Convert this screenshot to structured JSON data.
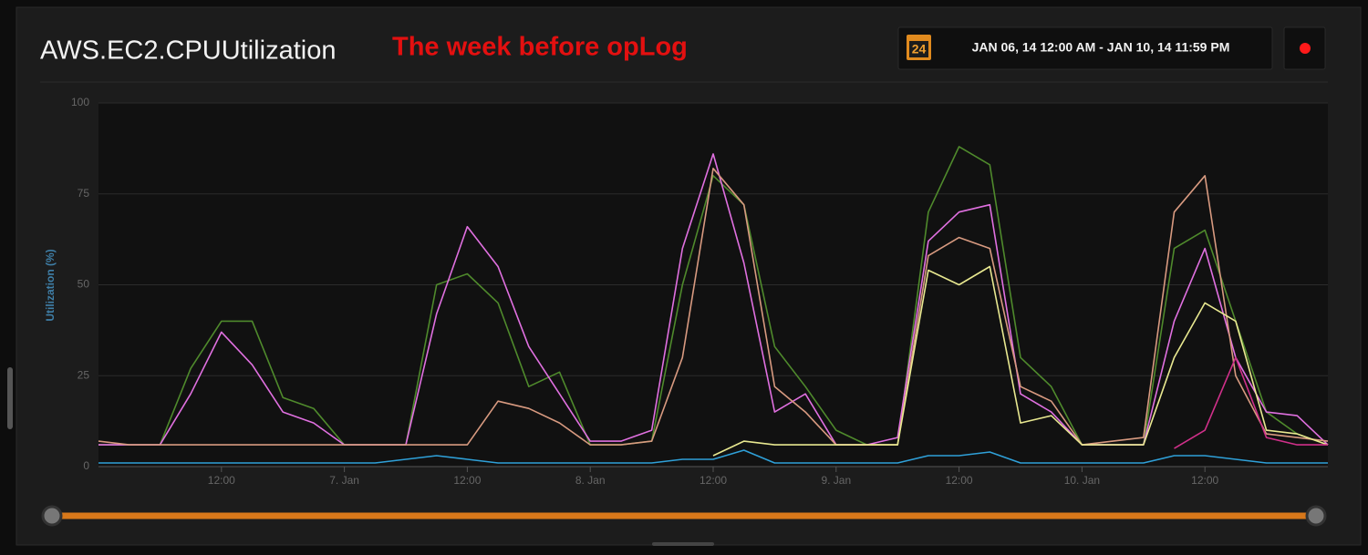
{
  "chart_data": {
    "type": "line",
    "title": "AWS.EC2.CPUUtilization",
    "annotation": "The week before opLog",
    "date_range": "JAN 06, 14 12:00 AM - JAN 10, 14 11:59 PM",
    "calendar_icon_label": "24",
    "ylabel": "Utilization (%)",
    "x": [
      0,
      3,
      6,
      9,
      12,
      15,
      18,
      21,
      24,
      27,
      30,
      33,
      36,
      39,
      42,
      45,
      48,
      51,
      54,
      57,
      60,
      63,
      66,
      69,
      72,
      75,
      78,
      81,
      84,
      87,
      90,
      93,
      96,
      99,
      102,
      105,
      108,
      111,
      114,
      117,
      120
    ],
    "xlim": [
      0,
      120
    ],
    "xticks": [
      {
        "value": 12,
        "label": "12:00"
      },
      {
        "value": 24,
        "label": "7. Jan"
      },
      {
        "value": 36,
        "label": "12:00"
      },
      {
        "value": 48,
        "label": "8. Jan"
      },
      {
        "value": 60,
        "label": "12:00"
      },
      {
        "value": 72,
        "label": "9. Jan"
      },
      {
        "value": 84,
        "label": "12:00"
      },
      {
        "value": 96,
        "label": "10. Jan"
      },
      {
        "value": 108,
        "label": "12:00"
      }
    ],
    "ylim": [
      0,
      100
    ],
    "yticks": [
      0,
      25,
      50,
      75,
      100
    ],
    "grid": true,
    "series": [
      {
        "color": "#4f8a2c",
        "values": [
          6,
          6,
          6,
          27,
          40,
          40,
          19,
          16,
          6,
          6,
          6,
          50,
          53,
          45,
          22,
          26,
          6,
          6,
          7,
          50,
          80,
          72,
          33,
          22,
          10,
          6,
          6,
          70,
          88,
          83,
          30,
          22,
          6,
          6,
          6,
          60,
          65,
          40,
          15,
          9,
          6
        ]
      },
      {
        "color": "#e070e0",
        "values": [
          6,
          6,
          6,
          20,
          37,
          28,
          15,
          12,
          6,
          6,
          6,
          42,
          66,
          55,
          33,
          20,
          7,
          7,
          10,
          60,
          86,
          56,
          15,
          20,
          6,
          6,
          8,
          62,
          70,
          72,
          20,
          15,
          6,
          6,
          6,
          40,
          60,
          30,
          15,
          14,
          6
        ]
      },
      {
        "color": "#d89a80",
        "values": [
          7,
          6,
          6,
          6,
          6,
          6,
          6,
          6,
          6,
          6,
          6,
          6,
          6,
          18,
          16,
          12,
          6,
          6,
          7,
          30,
          82,
          72,
          22,
          15,
          6,
          6,
          6,
          58,
          63,
          60,
          22,
          18,
          6,
          7,
          8,
          70,
          80,
          25,
          9,
          8,
          7
        ]
      },
      {
        "color": "#e8e890",
        "values": [
          null,
          null,
          null,
          null,
          null,
          null,
          null,
          null,
          null,
          null,
          null,
          null,
          null,
          null,
          null,
          null,
          null,
          null,
          null,
          null,
          3,
          7,
          6,
          6,
          6,
          6,
          6,
          54,
          50,
          55,
          12,
          14,
          6,
          6,
          6,
          30,
          45,
          40,
          10,
          9,
          6
        ]
      },
      {
        "color": "#2fa0d8",
        "values": [
          1,
          1,
          1,
          1,
          1,
          1,
          1,
          1,
          1,
          1,
          2,
          3,
          2,
          1,
          1,
          1,
          1,
          1,
          1,
          2,
          2,
          4.5,
          1,
          1,
          1,
          1,
          1,
          3,
          3,
          4,
          1,
          1,
          1,
          1,
          1,
          3,
          3,
          2,
          1,
          1,
          1
        ]
      },
      {
        "color": "#d0308a",
        "values": [
          null,
          null,
          null,
          null,
          null,
          null,
          null,
          null,
          null,
          null,
          null,
          null,
          null,
          null,
          null,
          null,
          null,
          null,
          null,
          null,
          null,
          null,
          null,
          null,
          null,
          null,
          null,
          null,
          null,
          null,
          null,
          null,
          null,
          null,
          null,
          5,
          10,
          30,
          8,
          6,
          6
        ]
      }
    ]
  }
}
